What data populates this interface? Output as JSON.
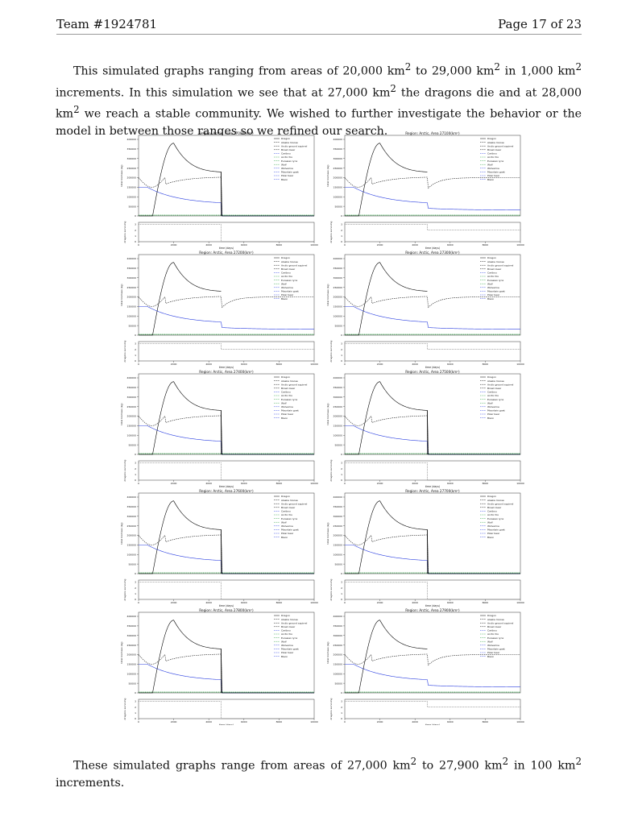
{
  "header": {
    "team": "Team #1924781",
    "page": "Page 17 of 23"
  },
  "para1": {
    "s1a": "This simulated graphs ranging from areas of 20,000 km",
    "s1b": " to 29,000 km",
    "s1c": " in 1,000 km",
    "s1d": " increments. In this simulation we see that at 27,000 km",
    "s1e": " the dragons die and at 28,000 km",
    "s1f": " we reach a stable community. We wished to further investigate the behavior or the model in between those ranges so we refined our search.",
    "sup": "2"
  },
  "para2": {
    "a": "These simulated graphs range from areas of 27,000 km",
    "b": " to 27,900 km",
    "c": " in 100 km",
    "d": " increments.",
    "sup": "2"
  },
  "colors": {
    "dragon": "#000000",
    "moose": "#222222",
    "blue": "#2b3fe0",
    "green": "#2ea043",
    "grid": "#cccccc"
  },
  "chart_data": {
    "type": "line",
    "xlabel": "time (days)",
    "ylabel": "total biomass (kg)",
    "legend": [
      "Dragon",
      "Alaska moose",
      "Arctic ground squirrel",
      "Brown bear",
      "Caribou",
      "Arctic fox",
      "Eurasian lynx",
      "Wolf",
      "Wolverine",
      "Mountain goat",
      "Polar bear",
      "Bison"
    ],
    "legend_placement": "top-right",
    "xlim": [
      0,
      10000
    ],
    "ylim": [
      0,
      400000
    ],
    "xticks": [
      "0",
      "2000",
      "4000",
      "6000",
      "8000",
      "10000"
    ],
    "yticks": [
      "0",
      "50000",
      "100000",
      "150000",
      "200000",
      "250000",
      "300000",
      "350000",
      "400000"
    ],
    "sub_ylabel": "dragons surviving",
    "sub_yticks": [
      "0",
      "1",
      "2",
      "3"
    ],
    "panels": [
      {
        "title": "Region: Arctic, Area 27000(km²)",
        "outcome": "die"
      },
      {
        "title": "Region: Arctic, Area 27100(km²)",
        "outcome": "stable"
      },
      {
        "title": "Region: Arctic, Area 27200(km²)",
        "outcome": "stable"
      },
      {
        "title": "Region: Arctic, Area 27300(km²)",
        "outcome": "stable"
      },
      {
        "title": "Region: Arctic, Area 27400(km²)",
        "outcome": "die"
      },
      {
        "title": "Region: Arctic, Area 27500(km²)",
        "outcome": "die"
      },
      {
        "title": "Region: Arctic, Area 27600(km²)",
        "outcome": "die"
      },
      {
        "title": "Region: Arctic, Area 27700(km²)",
        "outcome": "die"
      },
      {
        "title": "Region: Arctic, Area 27800(km²)",
        "outcome": "die"
      },
      {
        "title": "Region: Arctic, Area 27900(km²)",
        "outcome": "stable"
      }
    ]
  }
}
